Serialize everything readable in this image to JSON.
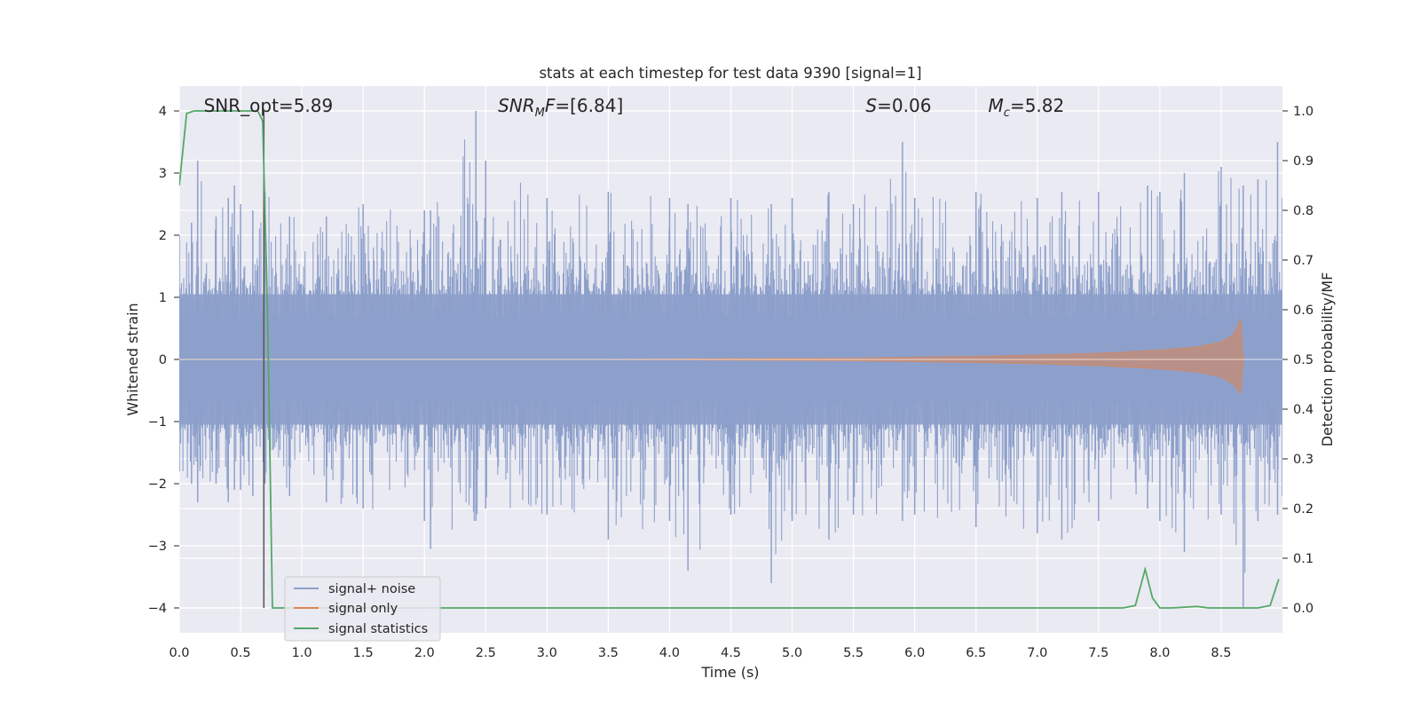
{
  "chart_data": {
    "type": "line",
    "title": "stats at each timestep for test data 9390 [signal=1]",
    "xlabel": "Time (s)",
    "ylabel": "Whitened strain",
    "y2label": "Detection probability/MF",
    "xlim": [
      0,
      9
    ],
    "ylim": [
      -4.4,
      4.4
    ],
    "y2lim": [
      -0.05,
      1.05
    ],
    "xticks": [
      0.0,
      0.5,
      1.0,
      1.5,
      2.0,
      2.5,
      3.0,
      3.5,
      4.0,
      4.5,
      5.0,
      5.5,
      6.0,
      6.5,
      7.0,
      7.5,
      8.0,
      8.5
    ],
    "xtick_labels": [
      "0.0",
      "0.5",
      "1.0",
      "1.5",
      "2.0",
      "2.5",
      "3.0",
      "3.5",
      "4.0",
      "4.5",
      "5.0",
      "5.5",
      "6.0",
      "6.5",
      "7.0",
      "7.5",
      "8.0",
      "8.5"
    ],
    "yticks": [
      -4,
      -3,
      -2,
      -1,
      0,
      1,
      2,
      3,
      4
    ],
    "ytick_labels": [
      "−4",
      "−3",
      "−2",
      "−1",
      "0",
      "1",
      "2",
      "3",
      "4"
    ],
    "y2ticks": [
      0.0,
      0.1,
      0.2,
      0.3,
      0.4,
      0.5,
      0.6,
      0.7,
      0.8,
      0.9,
      1.0
    ],
    "y2tick_labels": [
      "0.0",
      "0.1",
      "0.2",
      "0.3",
      "0.4",
      "0.5",
      "0.6",
      "0.7",
      "0.8",
      "0.9",
      "1.0"
    ],
    "grid": true,
    "legend_position": "lower-left",
    "legend": [
      "signal+ noise",
      "signal only",
      "signal statistics"
    ],
    "annotations": [
      {
        "base": "SNR_opt=5.89",
        "sub": "",
        "rest": "",
        "italic": false,
        "x": 0.2,
        "y": 4.1
      },
      {
        "base": "SNR",
        "sub": "M",
        "rest": "F=[6.84]",
        "italic": true,
        "x": 2.6,
        "y": 4.1
      },
      {
        "base": "S",
        "sub": "",
        "rest": "=0.06",
        "italic": true,
        "x": 5.6,
        "y": 4.1
      },
      {
        "base": "M",
        "sub": "c",
        "rest": "=5.82",
        "italic": true,
        "x": 6.6,
        "y": 4.1
      }
    ],
    "vline": {
      "x": 0.69,
      "y_range": [
        -4,
        4
      ]
    },
    "colors": {
      "noise": "#8da0cb",
      "signal": "#dd8452",
      "stats": "#55a868",
      "vline": "#555555",
      "background": "#eaeaf2",
      "grid": "#ffffff"
    },
    "series": [
      {
        "name": "signal+ noise",
        "axis": "left",
        "description_values": "band envelope",
        "x": [
          0.0,
          0.1,
          0.15,
          0.3,
          0.4,
          0.45,
          0.5,
          0.6,
          0.7,
          0.9,
          1.2,
          1.5,
          2.0,
          2.05,
          2.42,
          2.5,
          3.0,
          3.5,
          4.0,
          4.15,
          4.5,
          4.83,
          5.0,
          5.3,
          5.5,
          5.9,
          6.0,
          6.5,
          7.0,
          7.2,
          7.5,
          7.9,
          8.0,
          8.2,
          8.5,
          8.68,
          8.8,
          8.96,
          9.0
        ],
        "upper": [
          2.0,
          2.2,
          3.2,
          2.3,
          2.6,
          2.8,
          2.5,
          2.4,
          2.7,
          2.3,
          2.3,
          2.5,
          2.4,
          2.4,
          4.0,
          3.2,
          2.6,
          2.7,
          2.6,
          2.5,
          2.6,
          2.5,
          2.6,
          2.7,
          2.5,
          3.5,
          2.6,
          2.7,
          2.6,
          2.7,
          2.7,
          2.8,
          2.7,
          3.0,
          3.1,
          2.8,
          2.9,
          3.5,
          2.6
        ],
        "lower": [
          -1.8,
          -2.0,
          -2.3,
          -2.0,
          -2.3,
          -2.1,
          -2.1,
          -2.2,
          -2.0,
          -2.2,
          -2.3,
          -2.4,
          -2.6,
          -3.05,
          -2.6,
          -2.4,
          -2.5,
          -2.9,
          -2.6,
          -3.4,
          -2.5,
          -3.6,
          -2.6,
          -2.9,
          -2.5,
          -2.6,
          -2.5,
          -2.7,
          -2.8,
          -2.9,
          -2.6,
          -2.4,
          -2.6,
          -3.1,
          -2.5,
          -4.0,
          -2.6,
          -2.5,
          -2.2
        ]
      },
      {
        "name": "signal only",
        "axis": "left",
        "x": [
          3.5,
          4.5,
          5.5,
          6.5,
          7.0,
          7.5,
          8.0,
          8.3,
          8.5,
          8.6,
          8.66,
          8.68,
          8.7
        ],
        "upper": [
          0.0,
          0.01,
          0.02,
          0.05,
          0.07,
          0.1,
          0.15,
          0.2,
          0.28,
          0.4,
          0.65,
          0.0,
          0.0
        ],
        "lower": [
          0.0,
          -0.01,
          -0.02,
          -0.05,
          -0.07,
          -0.1,
          -0.15,
          -0.2,
          -0.28,
          -0.4,
          -0.55,
          0.0,
          0.0
        ]
      },
      {
        "name": "signal statistics",
        "axis": "right",
        "x": [
          0.0,
          0.06,
          0.12,
          0.2,
          0.4,
          0.6,
          0.64,
          0.68,
          0.72,
          0.76,
          0.85,
          1.0,
          2.0,
          3.0,
          4.0,
          5.0,
          6.0,
          7.0,
          7.7,
          7.8,
          7.88,
          7.94,
          8.0,
          8.1,
          8.3,
          8.4,
          8.6,
          8.8,
          8.9,
          8.97
        ],
        "values": [
          0.85,
          0.995,
          1.0,
          1.0,
          1.0,
          1.0,
          1.0,
          0.98,
          0.6,
          0.0,
          0.0,
          0.0,
          0.0,
          0.0,
          0.0,
          0.0,
          0.0,
          0.0,
          0.0,
          0.005,
          0.078,
          0.02,
          0.0,
          0.0,
          0.003,
          0.0,
          0.0,
          0.0,
          0.005,
          0.058
        ]
      }
    ]
  }
}
